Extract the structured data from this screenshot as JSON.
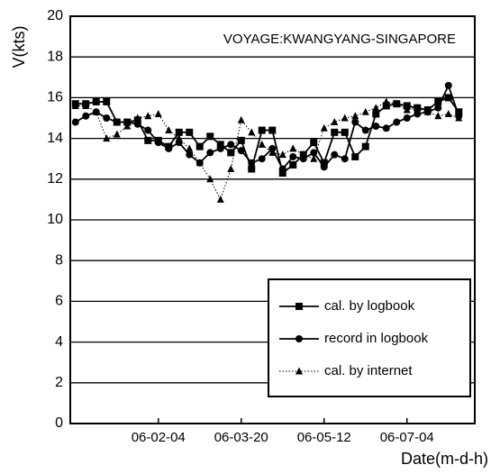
{
  "chart_data": {
    "type": "line",
    "annotation": "VOYAGE:KWANGYANG-SINGAPORE",
    "y_label": "V(kts)",
    "x_label": "Date(m-d-h)",
    "categories": [
      null,
      null,
      null,
      null,
      null,
      null,
      null,
      null,
      "06-02-04",
      null,
      null,
      null,
      null,
      null,
      null,
      null,
      "06-03-20",
      null,
      null,
      null,
      null,
      null,
      null,
      null,
      "06-05-12",
      null,
      null,
      null,
      null,
      null,
      null,
      null,
      "06-07-04",
      null,
      null,
      null,
      null,
      null
    ],
    "series": [
      {
        "name": "cal. by logbook",
        "color": "#000000",
        "marker": "square",
        "dash": "solid",
        "values": [
          15.7,
          15.7,
          15.8,
          15.8,
          14.8,
          14.8,
          14.9,
          13.9,
          13.9,
          13.6,
          14.3,
          14.3,
          13.6,
          14.1,
          13.7,
          13.3,
          13.9,
          12.5,
          14.4,
          14.4,
          12.3,
          12.7,
          13.2,
          13.8,
          12.8,
          14.3,
          14.3,
          13.1,
          13.6,
          15.2,
          15.6,
          15.7,
          15.6,
          15.5,
          15.4,
          15.8,
          16.0,
          15.3
        ]
      },
      {
        "name": "record in logbook",
        "color": "#000000",
        "marker": "circle",
        "dash": "solid",
        "values": [
          14.8,
          15.1,
          15.3,
          15.0,
          14.8,
          14.8,
          14.7,
          14.4,
          13.8,
          13.5,
          13.8,
          13.2,
          12.8,
          13.3,
          13.5,
          13.7,
          13.4,
          12.8,
          13.0,
          13.5,
          12.5,
          13.1,
          13.0,
          13.3,
          12.6,
          13.2,
          13.0,
          14.8,
          14.4,
          14.6,
          14.5,
          14.8,
          15.0,
          15.2,
          15.3,
          15.5,
          16.6,
          15.1
        ]
      },
      {
        "name": "cal. by internet",
        "color": "#000000",
        "marker": "triangle",
        "dash": "dotted",
        "values": [
          15.6,
          15.6,
          15.3,
          14.0,
          14.2,
          14.6,
          15.0,
          15.1,
          15.2,
          14.4,
          14.0,
          13.5,
          12.8,
          12.0,
          11.0,
          12.5,
          14.9,
          14.3,
          13.7,
          13.3,
          13.2,
          13.5,
          13.2,
          13.0,
          14.5,
          14.8,
          15.0,
          15.1,
          15.3,
          15.5,
          15.8,
          15.7,
          15.4,
          15.5,
          15.3,
          15.1,
          15.2,
          15.0
        ]
      }
    ],
    "ylim": [
      0,
      20
    ],
    "yticks": [
      0,
      2,
      4,
      6,
      8,
      10,
      12,
      14,
      16,
      18,
      20
    ],
    "grid": true,
    "legend": "lower right"
  }
}
